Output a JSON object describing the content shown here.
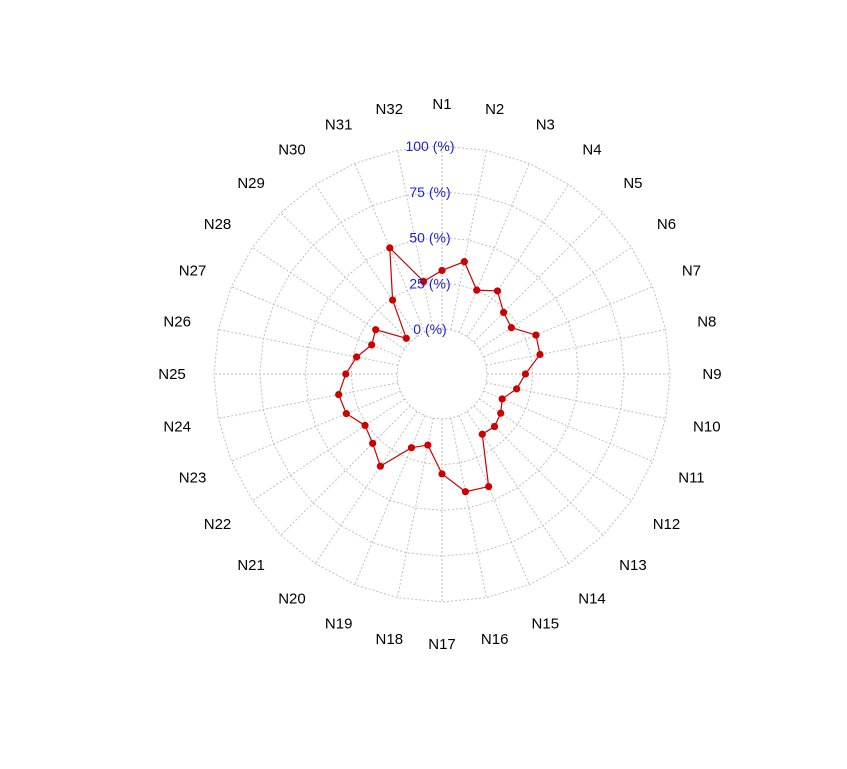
{
  "chart_data": {
    "type": "radar",
    "title": "",
    "axes": [
      "N1",
      "N2",
      "N3",
      "N4",
      "N5",
      "N6",
      "N7",
      "N8",
      "N9",
      "N10",
      "N11",
      "N12",
      "N13",
      "N14",
      "N15",
      "N16",
      "N17",
      "N18",
      "N19",
      "N20",
      "N21",
      "N22",
      "N23",
      "N24",
      "N25",
      "N26",
      "N27",
      "N28",
      "N29",
      "N30",
      "N31",
      "N32"
    ],
    "ring_labels": [
      "0 (%)",
      "25 (%)",
      "50 (%)",
      "75 (%)",
      "100 (%)"
    ],
    "range": [
      0,
      100
    ],
    "series": [
      {
        "values": [
          32,
          38,
          25,
          30,
          23,
          21,
          31,
          30,
          21,
          17,
          11,
          14,
          16,
          15,
          42,
          41,
          30,
          15,
          19,
          36,
          29,
          26,
          32,
          33,
          28,
          23,
          17,
          19,
          3,
          24,
          50,
          27
        ]
      }
    ],
    "colors": {
      "series": "#cc0000",
      "grid": "#bebebe",
      "ring_label": "#1f1fcf"
    },
    "grid": true
  }
}
